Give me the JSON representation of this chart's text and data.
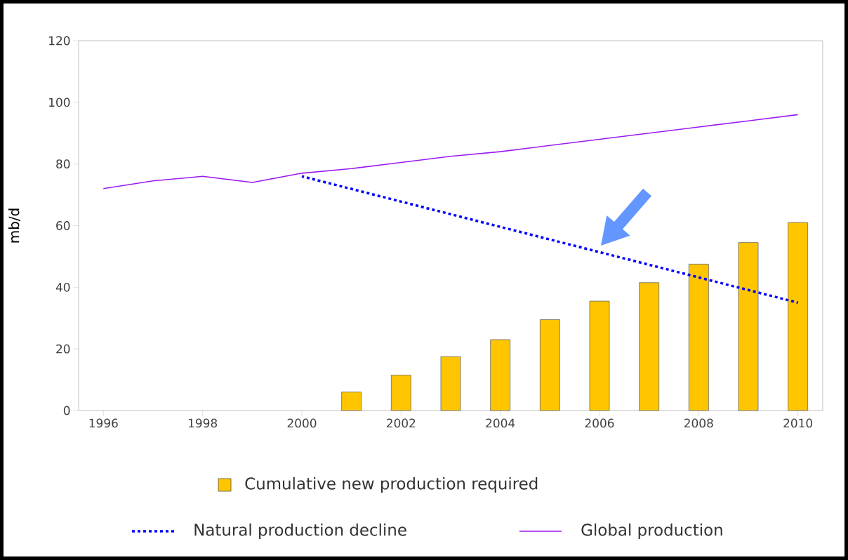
{
  "chart_data": {
    "type": "bar",
    "ylabel": "mb/d",
    "x": [
      2001,
      2002,
      2003,
      2004,
      2005,
      2006,
      2007,
      2008,
      2009,
      2010
    ],
    "xlim": [
      1995.5,
      2010.5
    ],
    "xticks": [
      1996,
      1998,
      2000,
      2002,
      2004,
      2006,
      2008,
      2010
    ],
    "ylim": [
      0,
      120
    ],
    "yticks": [
      0,
      20,
      40,
      60,
      80,
      100,
      120
    ],
    "grid": false,
    "legend": "bottom",
    "series": [
      {
        "name": "Cumulative new production required",
        "color": "#ffc600",
        "values": [
          6,
          11.5,
          17.5,
          23,
          29.5,
          35.5,
          41.5,
          47.5,
          54.5,
          61
        ]
      },
      {
        "name": "Natural production decline",
        "type": "line",
        "line_style": "dotted",
        "color": "#0000ff",
        "x": [
          2000,
          2010
        ],
        "values": [
          76,
          35
        ]
      },
      {
        "name": "Global production",
        "type": "line",
        "line_style": "solid",
        "color": "#9b1cf0",
        "x": [
          1996,
          1997,
          1998,
          1999,
          2000,
          2001,
          2002,
          2003,
          2004,
          2005,
          2006,
          2007,
          2008,
          2009,
          2010
        ],
        "values": [
          72,
          74.5,
          76,
          74,
          77,
          78.5,
          80.5,
          82.5,
          84,
          86,
          88,
          90,
          92,
          94,
          96
        ]
      }
    ]
  }
}
